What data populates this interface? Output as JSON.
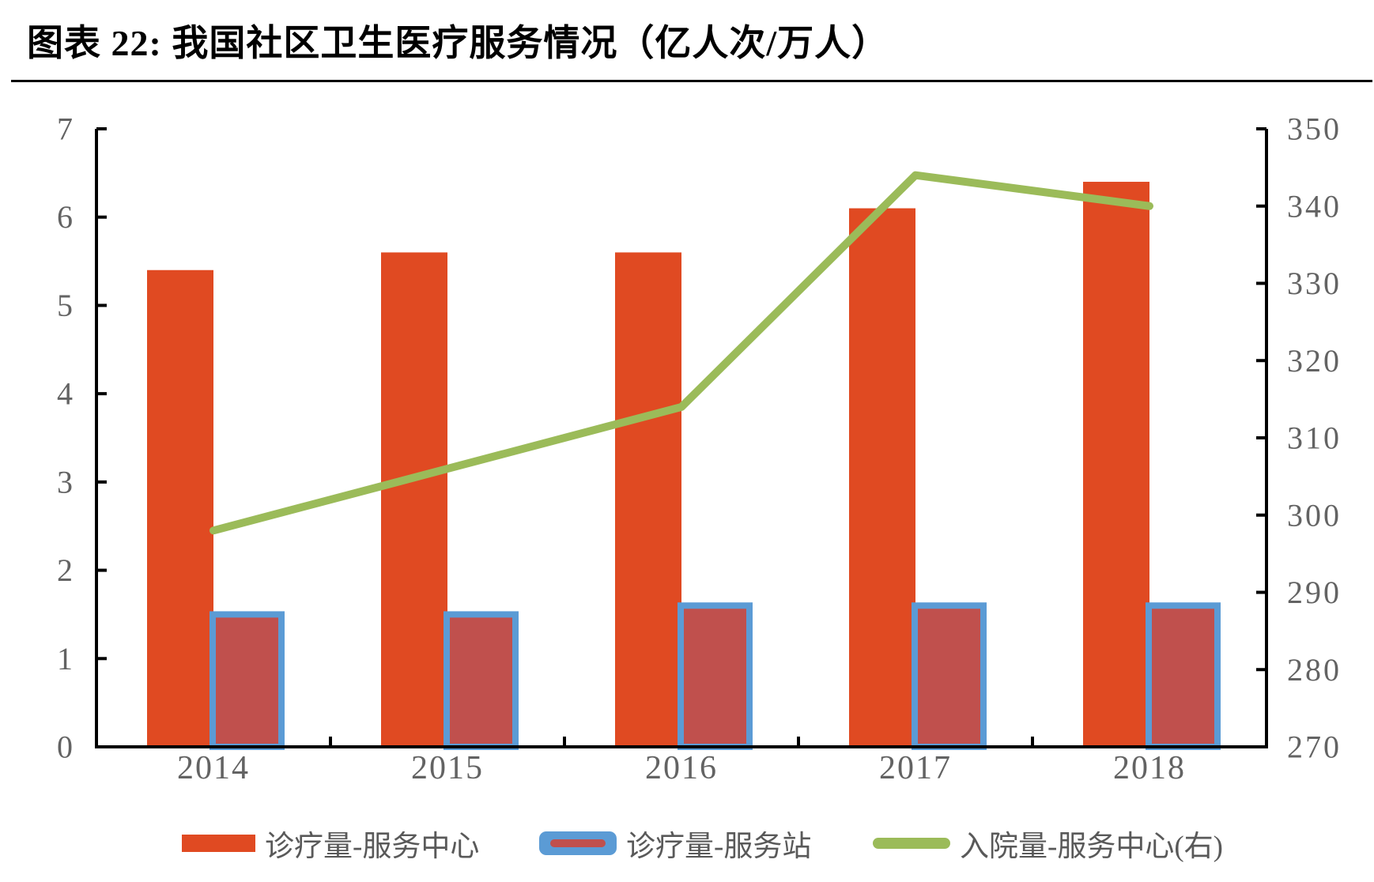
{
  "page": {
    "title": "图表 22: 我国社区卫生医疗服务情况（亿人次/万人）"
  },
  "chart_data": {
    "type": "bar",
    "subtype": "combo-bar-line-dual-axis",
    "title": "图表 22: 我国社区卫生医疗服务情况（亿人次/万人）",
    "categories": [
      "2014",
      "2015",
      "2016",
      "2017",
      "2018"
    ],
    "series": [
      {
        "name": "诊疗量-服务中心",
        "type": "bar",
        "axis": "left",
        "color": "#E04A22",
        "values": [
          5.4,
          5.6,
          5.6,
          6.1,
          6.4
        ]
      },
      {
        "name": "诊疗量-服务站",
        "type": "bar",
        "axis": "left",
        "color": "#C0504D",
        "border_color": "#5B9BD5",
        "values": [
          1.5,
          1.5,
          1.6,
          1.6,
          1.6
        ]
      },
      {
        "name": "入院量-服务中心(右)",
        "type": "line",
        "axis": "right",
        "color": "#9BBB59",
        "values": [
          298,
          306,
          314,
          344,
          340
        ]
      }
    ],
    "left_axis": {
      "min": 0,
      "max": 7,
      "step": 1,
      "unit": "亿人次"
    },
    "right_axis": {
      "min": 270,
      "max": 350,
      "step": 10,
      "unit": "万人"
    },
    "xlabel": "",
    "ylabel": "",
    "grid": false,
    "legend_position": "bottom",
    "tick_label_color": "#636363",
    "axis_color": "#000000"
  }
}
